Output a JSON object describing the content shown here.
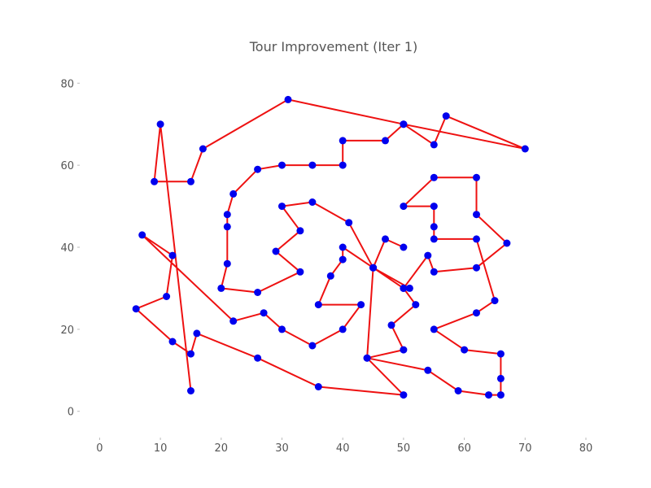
{
  "chart_data": {
    "type": "line",
    "title": "Tour Improvement (Iter 1)",
    "xlabel": "",
    "ylabel": "",
    "xlim": [
      -3,
      80
    ],
    "ylim": [
      -6,
      86
    ],
    "xticks": [
      0,
      10,
      20,
      30,
      40,
      50,
      60,
      70,
      80
    ],
    "yticks": [
      0,
      20,
      40,
      60,
      80
    ],
    "grid": false,
    "colors": {
      "tour_line": "#ee1111",
      "city_marker": "#0000ee"
    },
    "series": [
      {
        "x": [
          15,
          10,
          9,
          15,
          17,
          31,
          50,
          55,
          57,
          70,
          50,
          47,
          40,
          40,
          35,
          30,
          26,
          22,
          21,
          21,
          21,
          20,
          26,
          33,
          29,
          33,
          30,
          35,
          41,
          45,
          51,
          50,
          45,
          40,
          40,
          38,
          36,
          43,
          40,
          35,
          30,
          27,
          22,
          7,
          12,
          11,
          6,
          12,
          15,
          16,
          26,
          36,
          50,
          44,
          50,
          48,
          52,
          50,
          54,
          55,
          62,
          67,
          62,
          62,
          55,
          50,
          55,
          55,
          55,
          62,
          65,
          62,
          55,
          60,
          66,
          66,
          66,
          64,
          59,
          54,
          44,
          45,
          47,
          50
        ],
        "y": [
          5,
          70,
          56,
          56,
          64,
          76,
          70,
          65,
          72,
          64,
          70,
          66,
          66,
          60,
          60,
          60,
          59,
          53,
          48,
          45,
          36,
          30,
          29,
          34,
          39,
          44,
          50,
          51,
          46,
          35,
          30,
          30,
          35,
          40,
          37,
          33,
          26,
          26,
          20,
          16,
          20,
          24,
          22,
          43,
          38,
          28,
          25,
          17,
          14,
          19,
          13,
          6,
          4,
          13,
          15,
          21,
          26,
          30,
          38,
          34,
          35,
          41,
          48,
          57,
          57,
          50,
          50,
          45,
          42,
          42,
          27,
          24,
          20,
          15,
          14,
          8,
          4,
          4,
          5,
          10,
          13,
          35,
          42,
          40
        ]
      }
    ]
  }
}
